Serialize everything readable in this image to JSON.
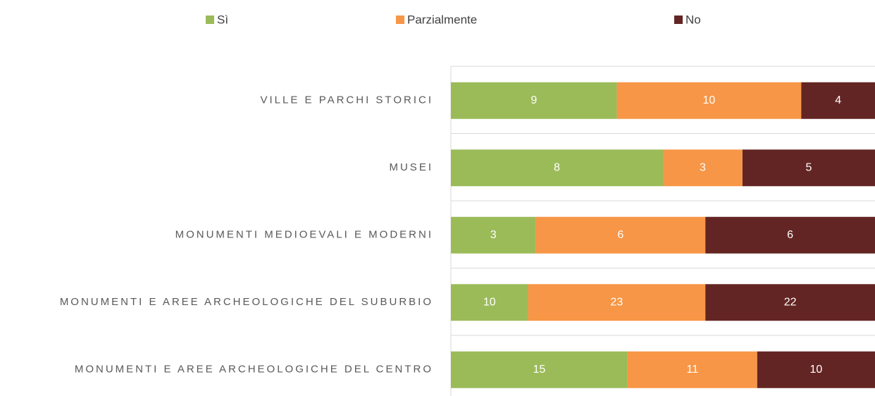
{
  "chart_data": {
    "type": "bar",
    "orientation": "horizontal",
    "stacking": "percent",
    "categories": [
      "VILLE E PARCHI STORICI",
      "MUSEI",
      "MONUMENTI MEDIOEVALI E MODERNI",
      "MONUMENTI E AREE ARCHEOLOGICHE DEL SUBURBIO",
      "MONUMENTI E AREE ARCHEOLOGICHE DEL CENTRO"
    ],
    "series": [
      {
        "name": "Sì",
        "color": "#9bbb59",
        "values": [
          9,
          8,
          3,
          10,
          15
        ]
      },
      {
        "name": "Parzialmente",
        "color": "#f79646",
        "values": [
          10,
          3,
          6,
          23,
          11
        ]
      },
      {
        "name": "No",
        "color": "#632523",
        "values": [
          4,
          5,
          6,
          22,
          10
        ]
      }
    ],
    "legend": "top",
    "grid": true
  }
}
